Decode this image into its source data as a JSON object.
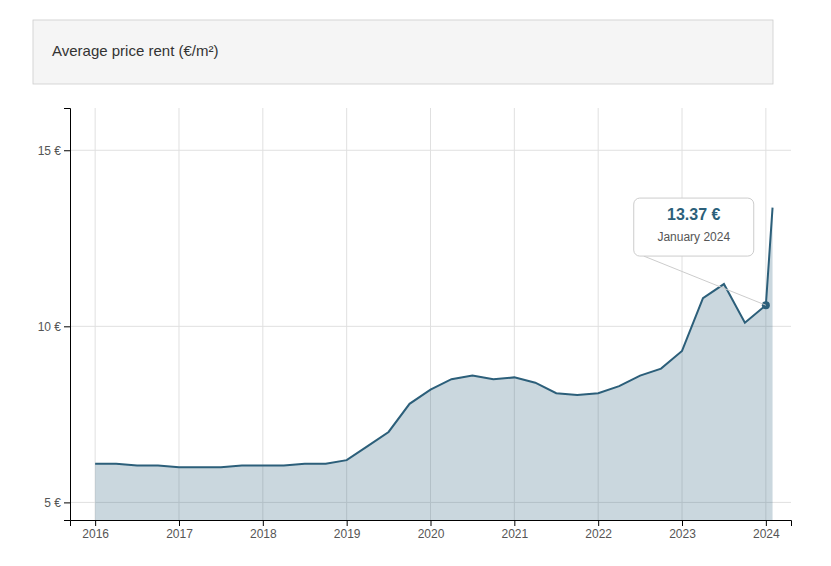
{
  "chart_data": {
    "type": "area",
    "title": "Average price rent (€/m²)",
    "color": "#2c5f7a",
    "x": [
      2016.0,
      2016.25,
      2016.5,
      2016.75,
      2017.0,
      2017.25,
      2017.5,
      2017.75,
      2018.0,
      2018.25,
      2018.5,
      2018.75,
      2019.0,
      2019.25,
      2019.5,
      2019.75,
      2020.0,
      2020.25,
      2020.5,
      2020.75,
      2021.0,
      2021.25,
      2021.5,
      2021.75,
      2022.0,
      2022.25,
      2022.5,
      2022.75,
      2023.0,
      2023.25,
      2023.5,
      2023.75,
      2024.0,
      2024.08
    ],
    "values": [
      6.1,
      6.1,
      6.05,
      6.05,
      6.0,
      6.0,
      6.0,
      6.05,
      6.05,
      6.05,
      6.1,
      6.1,
      6.2,
      6.6,
      7.0,
      7.8,
      8.2,
      8.5,
      8.6,
      8.5,
      8.55,
      8.4,
      8.1,
      8.05,
      8.1,
      8.3,
      8.6,
      8.8,
      9.3,
      10.8,
      11.2,
      10.1,
      10.6,
      13.37
    ],
    "xlim": [
      2015.7,
      2024.3
    ],
    "xticks": [
      2016,
      2017,
      2018,
      2019,
      2020,
      2021,
      2022,
      2023,
      2024
    ],
    "ylim": [
      4.5,
      16.2
    ],
    "yticks": [
      {
        "value": 5,
        "label": "5 €"
      },
      {
        "value": 10,
        "label": "10 €"
      },
      {
        "value": 15,
        "label": "15 €"
      }
    ],
    "grid": true,
    "annotations": [
      {
        "text": "13.37 €",
        "x": 2024.0,
        "y": 10.6
      },
      {
        "text": "January 2024",
        "x": 2024.0,
        "y": 10.6
      }
    ]
  }
}
